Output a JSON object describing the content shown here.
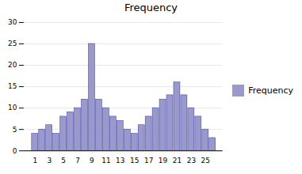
{
  "chart_data": {
    "type": "bar",
    "title": "Frequency",
    "categories": [
      1,
      2,
      3,
      4,
      5,
      6,
      7,
      8,
      9,
      10,
      11,
      12,
      13,
      14,
      15,
      16,
      17,
      18,
      19,
      20,
      21,
      22,
      23,
      24,
      25,
      26
    ],
    "values": [
      4,
      5,
      6,
      4,
      8,
      9,
      10,
      12,
      25,
      12,
      10,
      8,
      7,
      5,
      4,
      6,
      8,
      10,
      12,
      13,
      16,
      13,
      10,
      8,
      5,
      3
    ],
    "series_name": null,
    "color": "#9999cc",
    "legend": "right",
    "legend_label": "Frequency",
    "xticks": [
      1,
      3,
      5,
      7,
      9,
      11,
      13,
      15,
      17,
      19,
      21,
      23,
      25
    ],
    "ylim": [
      0,
      30
    ],
    "yticks": [
      0,
      5,
      10,
      15,
      20,
      25,
      30
    ],
    "grid": true
  }
}
